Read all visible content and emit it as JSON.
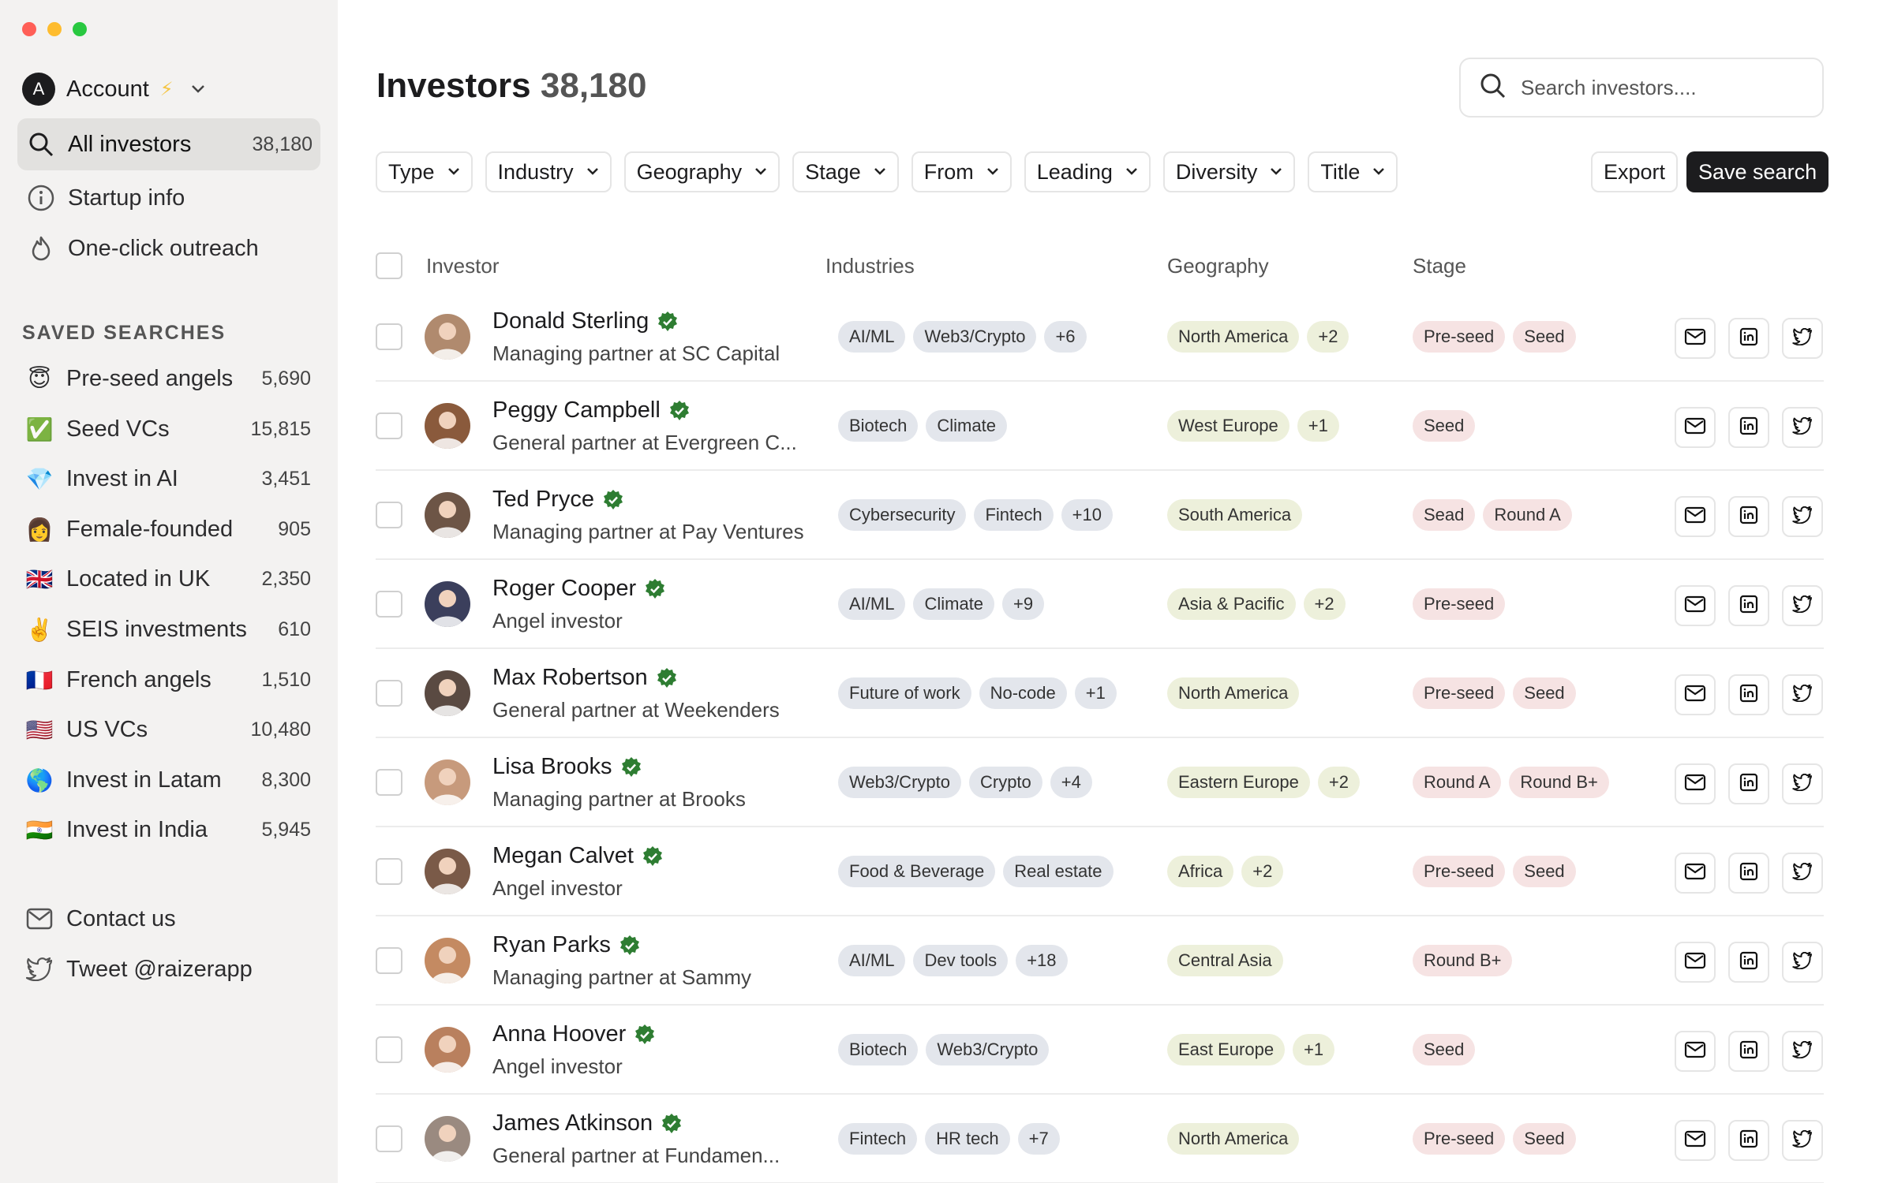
{
  "sidebar": {
    "account_label": "Account",
    "account_initial": "A",
    "nav": [
      {
        "label": "All investors",
        "count": "38,180",
        "icon": "search-icon"
      },
      {
        "label": "Startup info",
        "icon": "info-icon"
      },
      {
        "label": "One-click outreach",
        "icon": "flame-icon"
      }
    ],
    "saved_title": "SAVED SEARCHES",
    "saved": [
      {
        "emoji": "😇",
        "label": "Pre-seed angels",
        "count": "5,690"
      },
      {
        "emoji": "✅",
        "label": "Seed VCs",
        "count": "15,815"
      },
      {
        "emoji": "💎",
        "label": "Invest in AI",
        "count": "3,451"
      },
      {
        "emoji": "👩",
        "label": "Female-founded",
        "count": "905"
      },
      {
        "emoji": "🇬🇧",
        "label": "Located in UK",
        "count": "2,350"
      },
      {
        "emoji": "✌️",
        "label": "SEIS investments",
        "count": "610"
      },
      {
        "emoji": "🇫🇷",
        "label": "French angels",
        "count": "1,510"
      },
      {
        "emoji": "🇺🇸",
        "label": "US VCs",
        "count": "10,480"
      },
      {
        "emoji": "🌎",
        "label": "Invest in Latam",
        "count": "8,300"
      },
      {
        "emoji": "🇮🇳",
        "label": "Invest in India",
        "count": "5,945"
      }
    ],
    "footer": [
      {
        "label": "Contact us",
        "icon": "mail-icon"
      },
      {
        "label": "Tweet @raizerapp",
        "icon": "twitter-icon"
      }
    ]
  },
  "header": {
    "title": "Investors",
    "count": "38,180",
    "search_placeholder": "Search investors...."
  },
  "filters": [
    "Type",
    "Industry",
    "Geography",
    "Stage",
    "From",
    "Leading",
    "Diversity",
    "Title"
  ],
  "buttons": {
    "export": "Export",
    "save": "Save search"
  },
  "columns": {
    "investor": "Investor",
    "industries": "Industries",
    "geography": "Geography",
    "stage": "Stage"
  },
  "investors": [
    {
      "name": "Donald Sterling",
      "role": "Managing partner at SC Capital",
      "industries": [
        "AI/ML",
        "Web3/Crypto",
        "+6"
      ],
      "geo": [
        "North America",
        "+2"
      ],
      "stage": [
        "Pre-seed",
        "Seed"
      ],
      "photo": "#b08a6e"
    },
    {
      "name": "Peggy Campbell",
      "role": "General partner at Evergreen C...",
      "industries": [
        "Biotech",
        "Climate"
      ],
      "geo": [
        "West Europe",
        "+1"
      ],
      "stage": [
        "Seed"
      ],
      "photo": "#8a5a3c"
    },
    {
      "name": "Ted Pryce",
      "role": "Managing partner at Pay Ventures",
      "industries": [
        "Cybersecurity",
        "Fintech",
        "+10"
      ],
      "geo": [
        "South America"
      ],
      "stage": [
        "Sead",
        "Round A"
      ],
      "photo": "#6d5546"
    },
    {
      "name": "Roger Cooper",
      "role": "Angel investor",
      "industries": [
        "AI/ML",
        "Climate",
        "+9"
      ],
      "geo": [
        "Asia & Pacific",
        "+2"
      ],
      "stage": [
        "Pre-seed"
      ],
      "photo": "#3b3f5c"
    },
    {
      "name": "Max Robertson",
      "role": "General partner at Weekenders",
      "industries": [
        "Future of work",
        "No-code",
        "+1"
      ],
      "geo": [
        "North America"
      ],
      "stage": [
        "Pre-seed",
        "Seed"
      ],
      "photo": "#5a4a42"
    },
    {
      "name": "Lisa Brooks",
      "role": "Managing partner at Brooks",
      "industries": [
        "Web3/Crypto",
        "Crypto",
        "+4"
      ],
      "geo": [
        "Eastern Europe",
        "+2"
      ],
      "stage": [
        "Round A",
        "Round B+"
      ],
      "photo": "#c79a7c"
    },
    {
      "name": "Megan Calvet",
      "role": "Angel investor",
      "industries": [
        "Food & Beverage",
        "Real estate"
      ],
      "geo": [
        "Africa",
        "+2"
      ],
      "stage": [
        "Pre-seed",
        "Seed"
      ],
      "photo": "#7a5a48"
    },
    {
      "name": "Ryan Parks",
      "role": "Managing partner at Sammy",
      "industries": [
        "AI/ML",
        "Dev tools",
        "+18"
      ],
      "geo": [
        "Central Asia"
      ],
      "stage": [
        "Round B+"
      ],
      "photo": "#c48a62"
    },
    {
      "name": "Anna Hoover",
      "role": "Angel investor",
      "industries": [
        "Biotech",
        "Web3/Crypto"
      ],
      "geo": [
        "East Europe",
        "+1"
      ],
      "stage": [
        "Seed"
      ],
      "photo": "#b9805e"
    },
    {
      "name": "James Atkinson",
      "role": "General partner at Fundamen...",
      "industries": [
        "Fintech",
        "HR tech",
        "+7"
      ],
      "geo": [
        "North America"
      ],
      "stage": [
        "Pre-seed",
        "Seed"
      ],
      "photo": "#9a8a80"
    }
  ]
}
